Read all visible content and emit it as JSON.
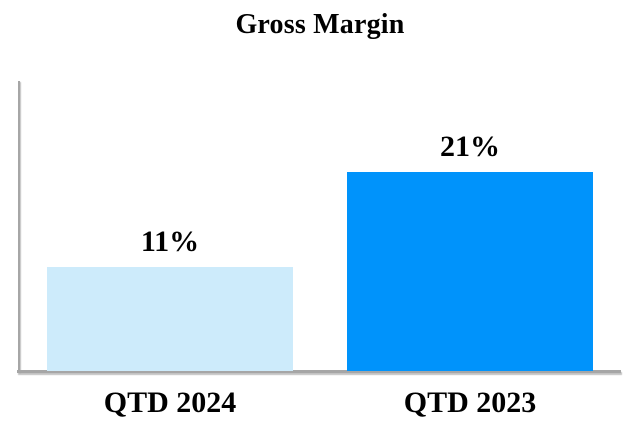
{
  "chart_data": {
    "type": "bar",
    "title": "Gross Margin",
    "categories": [
      "QTD 2024",
      "QTD 2023"
    ],
    "values": [
      11,
      21
    ],
    "value_labels": [
      "11%",
      "21%"
    ],
    "unit": "%",
    "series": [
      {
        "name": "Gross Margin",
        "values": [
          11,
          21
        ]
      }
    ],
    "ylim": [
      0,
      30.7
    ],
    "grid": false,
    "legend": "none",
    "colors": {
      "bars": [
        "#CDEBFB",
        "#0093FB"
      ],
      "axis": "#A6A6A6",
      "text": "#000000",
      "background": "#FFFFFF"
    }
  }
}
